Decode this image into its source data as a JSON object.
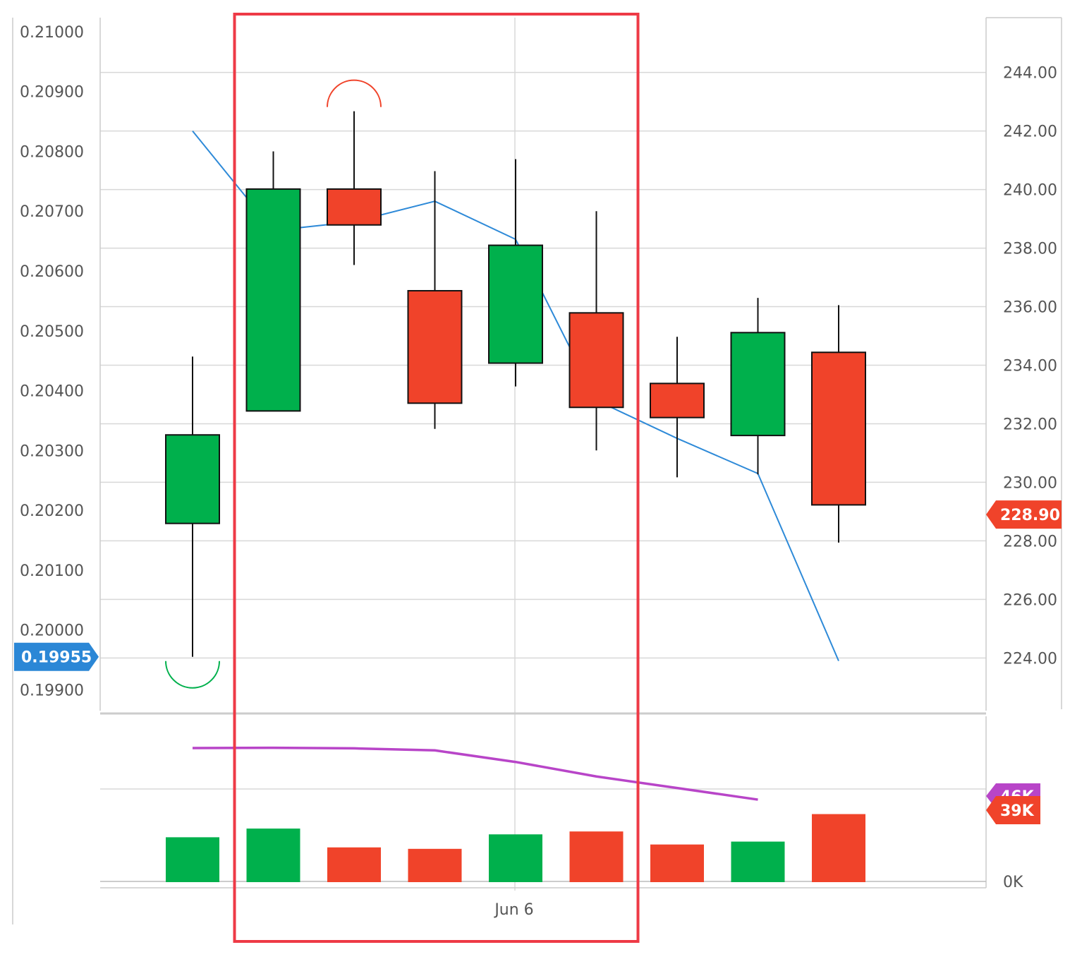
{
  "chart_data": {
    "type": "candlestick",
    "x_label": "Jun 6",
    "left_axis": {
      "ticks": [
        "0.21000",
        "0.20900",
        "0.20800",
        "0.20700",
        "0.20600",
        "0.20500",
        "0.20400",
        "0.20300",
        "0.20200",
        "0.20100",
        "0.20000",
        "0.19900"
      ],
      "range": [
        0.19865,
        0.2102
      ],
      "current_value": "0.19955"
    },
    "right_axis": {
      "ticks": [
        "244.00",
        "242.00",
        "240.00",
        "238.00",
        "236.00",
        "234.00",
        "232.00",
        "230.00",
        "228.00",
        "226.00",
        "224.00"
      ],
      "range": [
        222.2,
        245.8
      ],
      "current_value": "228.90"
    },
    "candles": [
      {
        "open": 0.20178,
        "high": 0.20457,
        "low": 0.19955,
        "close": 0.20326,
        "direction": "up"
      },
      {
        "open": 0.20366,
        "high": 0.208,
        "low": 0.20366,
        "close": 0.20737,
        "direction": "up"
      },
      {
        "open": 0.20737,
        "high": 0.20867,
        "low": 0.2061,
        "close": 0.20677,
        "direction": "down"
      },
      {
        "open": 0.20567,
        "high": 0.20767,
        "low": 0.20336,
        "close": 0.20379,
        "direction": "down"
      },
      {
        "open": 0.20446,
        "high": 0.20787,
        "low": 0.20407,
        "close": 0.20643,
        "direction": "up"
      },
      {
        "open": 0.2053,
        "high": 0.207,
        "low": 0.203,
        "close": 0.20372,
        "direction": "down"
      },
      {
        "open": 0.20412,
        "high": 0.2049,
        "low": 0.20255,
        "close": 0.20355,
        "direction": "down"
      },
      {
        "open": 0.20325,
        "high": 0.20555,
        "low": 0.2026,
        "close": 0.20497,
        "direction": "up"
      },
      {
        "open": 0.20464,
        "high": 0.20543,
        "low": 0.20146,
        "close": 0.20209,
        "direction": "down"
      }
    ],
    "line_series": [
      242.0,
      238.6,
      238.9,
      239.6,
      238.3,
      232.8,
      231.5,
      230.3,
      223.9
    ],
    "volume": {
      "values": [
        15.5,
        18.5,
        12.0,
        11.5,
        16.5,
        17.5,
        13.0,
        14.0,
        23.5
      ],
      "directions": [
        "up",
        "up",
        "down",
        "down",
        "up",
        "down",
        "down",
        "up",
        "down"
      ],
      "average_line": [
        46.3,
        46.4,
        46.2,
        45.5,
        41.5,
        36.5,
        32.5,
        28.5
      ],
      "range": [
        0,
        58
      ],
      "axis_label": "0K",
      "badge_hidden": "46K",
      "badge_current": "39K"
    },
    "markers": {
      "high": {
        "candle": 2
      },
      "low": {
        "candle": 0
      }
    },
    "highlight": {
      "from_candle": 1,
      "to_candle": 5
    }
  },
  "colors": {
    "up": "#00b04c",
    "down": "#f0432a",
    "line": "#2e8ad8",
    "volume_average": "#b845c8",
    "highlight_box": "#ee3a46",
    "left_badge": "#2b87d6",
    "right_badge": "#f0432a",
    "volume_badge_hidden": "#b845c8",
    "volume_badge": "#f0432a",
    "grid": "#d8d8d8"
  }
}
